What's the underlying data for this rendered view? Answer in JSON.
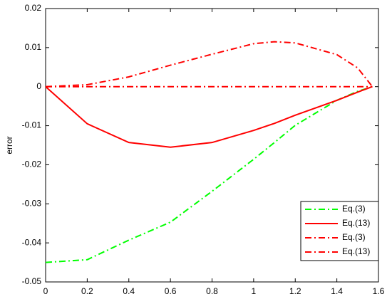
{
  "chart_data": {
    "type": "line",
    "y_label": "error",
    "x": [
      0,
      0.2,
      0.4,
      0.6,
      0.8,
      1.0,
      1.1,
      1.2,
      1.4,
      1.5,
      1.5708
    ],
    "series": [
      {
        "name": "Eq.(3)",
        "color": "#00ff00",
        "style": "dash-dot",
        "values": [
          -0.045,
          -0.0443,
          -0.0393,
          -0.0347,
          -0.0268,
          -0.0186,
          -0.0143,
          -0.0099,
          -0.0035,
          -0.0012,
          0
        ]
      },
      {
        "name": "Eq.(13)",
        "color": "#ff0000",
        "style": "solid",
        "values": [
          0,
          -0.0095,
          -0.0143,
          -0.0155,
          -0.0143,
          -0.0112,
          -0.0094,
          -0.0073,
          -0.0035,
          -0.0014,
          0
        ]
      },
      {
        "name": "Eq.(3)",
        "color": "#ff0000",
        "style": "dash-dot",
        "values": [
          0,
          0.0005,
          0.0025,
          0.0055,
          0.0083,
          0.011,
          0.0115,
          0.0112,
          0.0082,
          0.0048,
          0
        ]
      },
      {
        "name": "Eq.(13)",
        "color": "#ff0000",
        "style": "dash-dot",
        "values": [
          0,
          0,
          0,
          0,
          0,
          0,
          0,
          0,
          0,
          0,
          0
        ]
      }
    ],
    "xlim": [
      0,
      1.6
    ],
    "xticks": [
      0,
      0.2,
      0.4,
      0.6,
      0.8,
      1,
      1.2,
      1.4,
      1.6
    ],
    "ylim": [
      -0.05,
      0.02
    ],
    "yticks": [
      -0.05,
      -0.04,
      -0.03,
      -0.02,
      -0.01,
      0,
      0.01,
      0.02
    ],
    "grid": false,
    "legend": "lower-right"
  }
}
